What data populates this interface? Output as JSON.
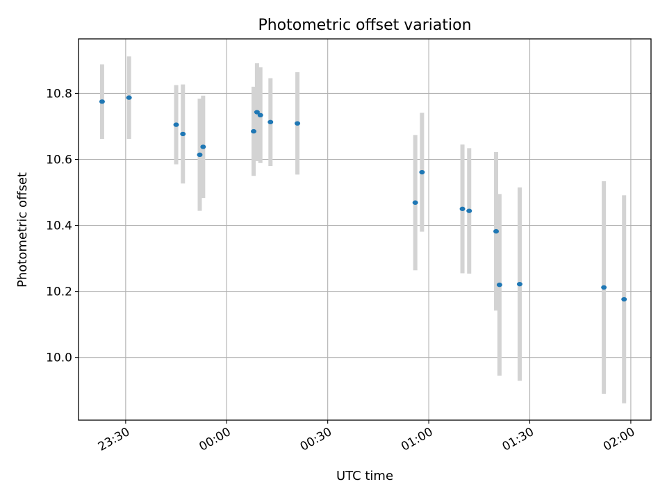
{
  "chart_data": {
    "type": "scatter",
    "title": "Photometric offset variation",
    "xlabel": "UTC time",
    "ylabel": "Photometric offset",
    "x_axis": {
      "kind": "time",
      "range": [
        "23:16",
        "02:06"
      ],
      "ticks": [
        "23:30",
        "00:00",
        "00:30",
        "01:00",
        "01:30",
        "02:00"
      ]
    },
    "y_axis": {
      "range": [
        9.81,
        10.965
      ],
      "ticks": [
        10.0,
        10.2,
        10.4,
        10.6,
        10.8
      ]
    },
    "grid": true,
    "marker_color": "#1f77b4",
    "errorbar_color": "#d3d3d3",
    "series": [
      {
        "points": [
          {
            "x": "23:23",
            "y": 10.775,
            "yerr": 0.113
          },
          {
            "x": "23:31",
            "y": 10.787,
            "yerr": 0.125
          },
          {
            "x": "23:45",
            "y": 10.705,
            "yerr": 0.12
          },
          {
            "x": "23:47",
            "y": 10.677,
            "yerr": 0.15
          },
          {
            "x": "23:52",
            "y": 10.614,
            "yerr": 0.17
          },
          {
            "x": "23:53",
            "y": 10.638,
            "yerr": 0.155
          },
          {
            "x": "00:08",
            "y": 10.685,
            "yerr": 0.135
          },
          {
            "x": "00:09",
            "y": 10.743,
            "yerr": 0.148
          },
          {
            "x": "00:10",
            "y": 10.734,
            "yerr": 0.145
          },
          {
            "x": "00:13",
            "y": 10.713,
            "yerr": 0.133
          },
          {
            "x": "00:21",
            "y": 10.709,
            "yerr": 0.155
          },
          {
            "x": "00:56",
            "y": 10.469,
            "yerr": 0.205
          },
          {
            "x": "00:58",
            "y": 10.561,
            "yerr": 0.18
          },
          {
            "x": "01:10",
            "y": 10.45,
            "yerr": 0.195
          },
          {
            "x": "01:12",
            "y": 10.444,
            "yerr": 0.19
          },
          {
            "x": "01:20",
            "y": 10.382,
            "yerr": 0.24
          },
          {
            "x": "01:21",
            "y": 10.22,
            "yerr": 0.275
          },
          {
            "x": "01:27",
            "y": 10.222,
            "yerr": 0.293
          },
          {
            "x": "01:52",
            "y": 10.212,
            "yerr": 0.322
          },
          {
            "x": "01:58",
            "y": 10.176,
            "yerr": 0.315
          }
        ]
      }
    ]
  }
}
